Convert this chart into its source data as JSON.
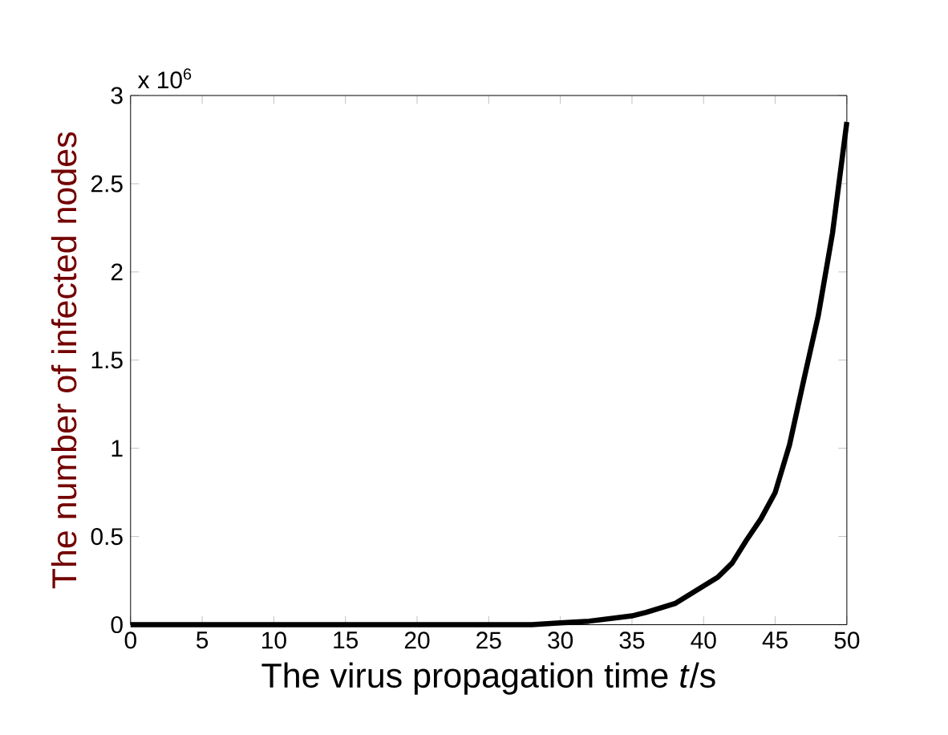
{
  "chart_data": {
    "type": "line",
    "xlabel": "The virus propagation time *t*/s",
    "ylabel": "The number of infected nodes",
    "annotations": [
      "x 10$^{6}$"
    ],
    "x": [
      0,
      5,
      10,
      15,
      20,
      25,
      28,
      30,
      32,
      35,
      36,
      38,
      40,
      41,
      42,
      43,
      44,
      45,
      46,
      47,
      48,
      49,
      50
    ],
    "series": [
      {
        "color": "#000000",
        "values": [
          0,
          0,
          0,
          0,
          0,
          0,
          0,
          0.01,
          0.02,
          0.05,
          0.07,
          0.12,
          0.22,
          0.27,
          0.35,
          0.48,
          0.6,
          0.75,
          1.02,
          1.39,
          1.75,
          2.22,
          2.85
        ]
      }
    ],
    "xlim": [
      0,
      50
    ],
    "ylim": [
      0,
      3
    ],
    "xticks": [
      0,
      5,
      10,
      15,
      20,
      25,
      30,
      35,
      40,
      45,
      50
    ],
    "yticks": [
      0,
      0.5,
      1,
      1.5,
      2,
      2.5,
      3
    ],
    "marker": "none",
    "line_style": "solid"
  }
}
